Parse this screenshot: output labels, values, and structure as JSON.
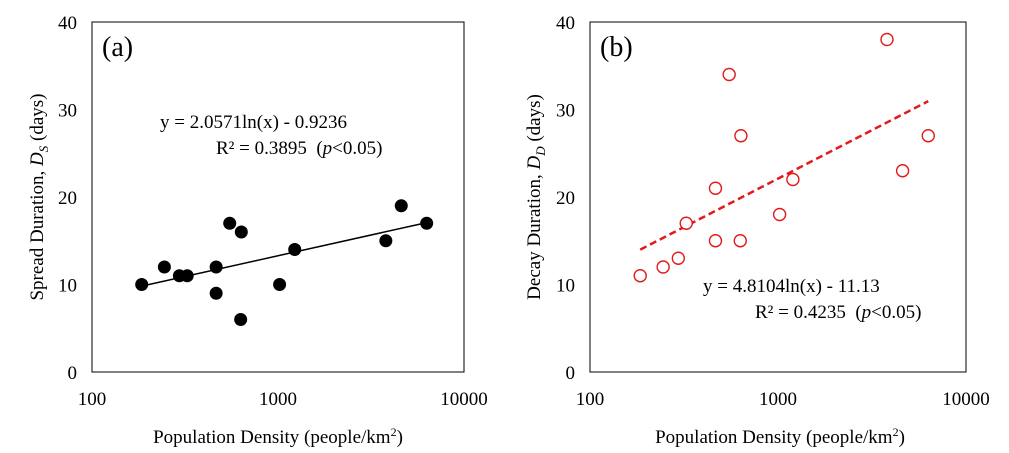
{
  "chart_data": [
    {
      "type": "scatter",
      "panel_label": "(a)",
      "xlabel_main": "Population Density (people/km",
      "xlabel_sup": "2",
      "xlabel_close": ")",
      "ylabel_main": "Spread Duration, ",
      "ylabel_var": "D",
      "ylabel_sub": "S",
      "ylabel_unit": " (days)",
      "x_scale": "log",
      "xlim": [
        100,
        10000
      ],
      "ylim": [
        0,
        40
      ],
      "x_ticks": [
        "100",
        "1000",
        "10000"
      ],
      "y_ticks": [
        "0",
        "10",
        "20",
        "30",
        "40"
      ],
      "marker": "filled-circle",
      "marker_color": "#000000",
      "trendline": {
        "type": "log",
        "a": 2.0571,
        "b": -0.9236,
        "style": "solid",
        "color": "#000000"
      },
      "equation": "y = 2.0571ln(x) - 0.9236",
      "r2_text": "R² = 0.3895",
      "p_open": "(",
      "p_var": "p",
      "p_rest": "<0.05)",
      "series": [
        {
          "x": [
            185,
            245,
            295,
            325,
            465,
            465,
            550,
            630,
            635,
            1020,
            1230,
            3800,
            4600,
            6300
          ],
          "y": [
            10,
            12,
            11,
            11,
            9,
            12,
            17,
            6,
            16,
            10,
            14,
            15,
            19,
            17
          ]
        }
      ]
    },
    {
      "type": "scatter",
      "panel_label": "(b)",
      "xlabel_main": "Population Density (people/km",
      "xlabel_sup": "2",
      "xlabel_close": ")",
      "ylabel_main": "Decay Duration, ",
      "ylabel_var": "D",
      "ylabel_sub": "D",
      "ylabel_unit": " (days)",
      "x_scale": "log",
      "xlim": [
        100,
        10000
      ],
      "ylim": [
        0,
        40
      ],
      "x_ticks": [
        "100",
        "1000",
        "10000"
      ],
      "y_ticks": [
        "0",
        "10",
        "20",
        "30",
        "40"
      ],
      "marker": "open-circle",
      "marker_color": "#e31a1c",
      "trendline": {
        "type": "log",
        "a": 4.8104,
        "b": -11.13,
        "style": "dashed",
        "color": "#e31a1c"
      },
      "equation": "y = 4.8104ln(x) - 11.13",
      "r2_text": "R² = 0.4235",
      "p_open": "(",
      "p_var": "p",
      "p_rest": "<0.05)",
      "series": [
        {
          "x": [
            185,
            245,
            295,
            325,
            465,
            465,
            550,
            630,
            635,
            1020,
            1200,
            3800,
            4600,
            6300
          ],
          "y": [
            11,
            12,
            13,
            17,
            21,
            15,
            34,
            15,
            27,
            18,
            22,
            38,
            23,
            27
          ]
        }
      ]
    }
  ]
}
